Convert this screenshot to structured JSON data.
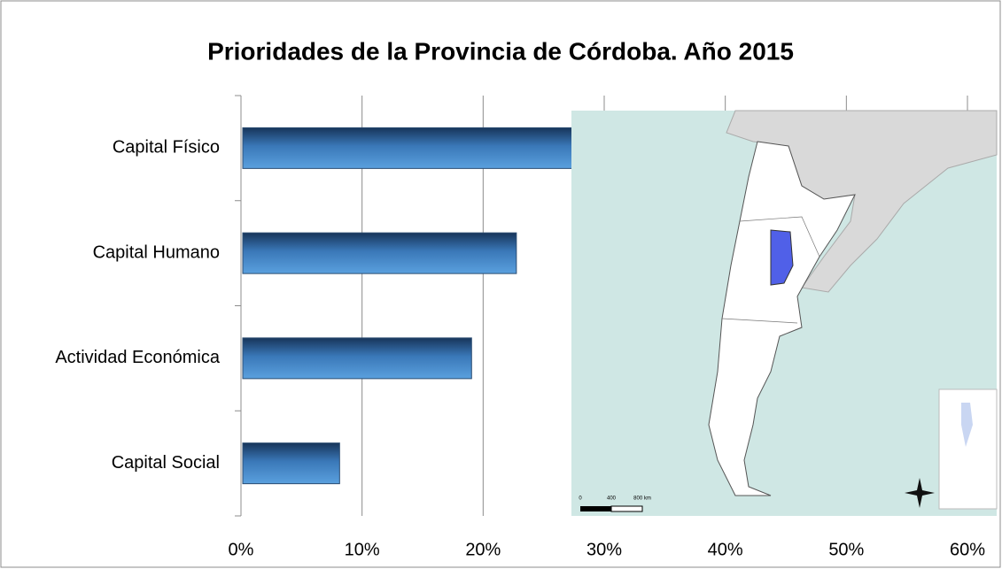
{
  "chart_data": {
    "type": "bar",
    "orientation": "horizontal",
    "title": "Prioridades de la Provincia de Córdoba.  Año 2015",
    "categories": [
      "Capital Físico",
      "Capital Humano",
      "Actividad Económica",
      "Capital Social"
    ],
    "values": [
      50,
      22.6,
      18.9,
      8
    ],
    "color": "#3f7fc0",
    "xlim": [
      0,
      60
    ],
    "xticks": [
      {
        "value": 0,
        "label": "0%"
      },
      {
        "value": 10,
        "label": "10%"
      },
      {
        "value": 20,
        "label": "20%"
      },
      {
        "value": 30,
        "label": "30%"
      },
      {
        "value": 40,
        "label": "40%"
      },
      {
        "value": 50,
        "label": "50%"
      },
      {
        "value": 60,
        "label": "60%"
      }
    ],
    "grid": true,
    "map_scale_labels": [
      "0",
      "400",
      "800 km"
    ]
  }
}
